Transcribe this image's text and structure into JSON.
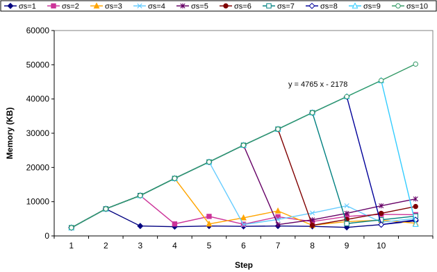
{
  "chart_data": {
    "type": "line",
    "title": "",
    "xlabel": "Step",
    "ylabel": "Memory (KB)",
    "x_ticks": [
      "1",
      "2",
      "3",
      "4",
      "5",
      "6",
      "7",
      "8",
      "9",
      "10"
    ],
    "y_ticks": [
      "0",
      "10000",
      "20000",
      "30000",
      "40000",
      "50000",
      "60000"
    ],
    "xlim": [
      0.5,
      11.5
    ],
    "ylim": [
      0,
      60000
    ],
    "grid": false,
    "legend_position": "top",
    "annotation": "y = 4765 x - 2178",
    "series": [
      {
        "name": "σs=1",
        "color": "#000080",
        "marker": "diamond-filled",
        "x": [
          1,
          2,
          3,
          4,
          5,
          6,
          7,
          8,
          9,
          10,
          11
        ],
        "y": [
          2400,
          7900,
          2900,
          2700,
          2900,
          2800,
          2900,
          2800,
          2500,
          3300,
          4400
        ]
      },
      {
        "name": "σs=2",
        "color": "#cc3399",
        "marker": "square-filled",
        "x": [
          1,
          2,
          3,
          4,
          5,
          6,
          7,
          8,
          9,
          10,
          11
        ],
        "y": [
          2400,
          7900,
          11800,
          3500,
          5700,
          3400,
          5600,
          4200,
          5700,
          6300,
          6200
        ]
      },
      {
        "name": "σs=3",
        "color": "#ffa500",
        "marker": "triangle-filled",
        "x": [
          1,
          2,
          3,
          4,
          5,
          6,
          7,
          8,
          9,
          10,
          11
        ],
        "y": [
          2400,
          7900,
          11800,
          16800,
          3500,
          5300,
          7300,
          3100,
          4200,
          4600,
          3700
        ]
      },
      {
        "name": "σs=4",
        "color": "#66ccff",
        "marker": "x",
        "x": [
          1,
          2,
          3,
          4,
          5,
          6,
          7,
          8,
          9,
          10,
          11
        ],
        "y": [
          2400,
          7900,
          11800,
          16800,
          21600,
          3300,
          4800,
          6700,
          8800,
          4000,
          5100
        ]
      },
      {
        "name": "σs=5",
        "color": "#660066",
        "marker": "star",
        "x": [
          1,
          2,
          3,
          4,
          5,
          6,
          7,
          8,
          9,
          10,
          11
        ],
        "y": [
          2400,
          7900,
          11800,
          16800,
          21600,
          26500,
          3300,
          4700,
          6600,
          8800,
          10800
        ]
      },
      {
        "name": "σs=6",
        "color": "#800000",
        "marker": "circle-filled",
        "x": [
          1,
          2,
          3,
          4,
          5,
          6,
          7,
          8,
          9,
          10,
          11
        ],
        "y": [
          2400,
          7900,
          11800,
          16800,
          21600,
          26500,
          31200,
          3100,
          4800,
          6600,
          8600
        ]
      },
      {
        "name": "σs=7",
        "color": "#008080",
        "marker": "square-open",
        "x": [
          1,
          2,
          3,
          4,
          5,
          6,
          7,
          8,
          9,
          10,
          11
        ],
        "y": [
          2400,
          7900,
          11800,
          16800,
          21600,
          26500,
          31200,
          36000,
          3600,
          4700,
          5800
        ]
      },
      {
        "name": "σs=8",
        "color": "#000099",
        "marker": "diamond-open",
        "x": [
          1,
          2,
          3,
          4,
          5,
          6,
          7,
          8,
          9,
          10,
          11
        ],
        "y": [
          2400,
          7900,
          11800,
          16800,
          21600,
          26500,
          31200,
          36000,
          40700,
          3300,
          4700
        ]
      },
      {
        "name": "σs=9",
        "color": "#33ccff",
        "marker": "triangle-open",
        "x": [
          1,
          2,
          3,
          4,
          5,
          6,
          7,
          8,
          9,
          10,
          11
        ],
        "y": [
          2400,
          7900,
          11800,
          16800,
          21600,
          26500,
          31200,
          36000,
          40700,
          45400,
          3400
        ]
      },
      {
        "name": "σs=10",
        "color": "#339966",
        "marker": "circle-open",
        "x": [
          1,
          2,
          3,
          4,
          5,
          6,
          7,
          8,
          9,
          10,
          11
        ],
        "y": [
          2400,
          7900,
          11800,
          16800,
          21600,
          26500,
          31200,
          36000,
          40700,
          45400,
          50200
        ]
      }
    ]
  }
}
